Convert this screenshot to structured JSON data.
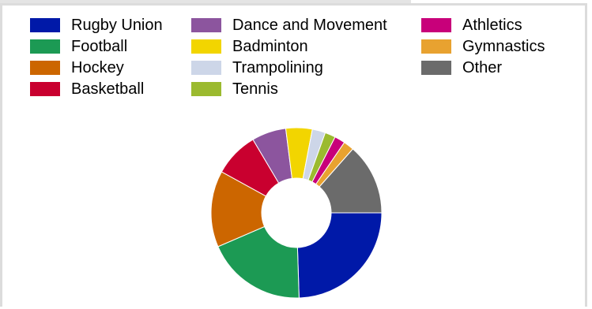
{
  "chart_data": {
    "type": "pie",
    "style": "donut",
    "title": "",
    "legend_position": "top",
    "slices": [
      {
        "label": "Rugby Union",
        "value": 24.5,
        "color": "#0019a8"
      },
      {
        "label": "Football",
        "value": 19.0,
        "color": "#1c9a54"
      },
      {
        "label": "Hockey",
        "value": 14.5,
        "color": "#cc6600"
      },
      {
        "label": "Basketball",
        "value": 8.5,
        "color": "#c9002f"
      },
      {
        "label": "Dance and Movement",
        "value": 6.5,
        "color": "#8c559e"
      },
      {
        "label": "Badminton",
        "value": 5.0,
        "color": "#f2d500"
      },
      {
        "label": "Trampolining",
        "value": 2.5,
        "color": "#cdd6e8"
      },
      {
        "label": "Tennis",
        "value": 2.0,
        "color": "#9bba2f"
      },
      {
        "label": "Athletics",
        "value": 2.0,
        "color": "#c8007a"
      },
      {
        "label": "Gymnastics",
        "value": 2.0,
        "color": "#e8a230"
      },
      {
        "label": "Other",
        "value": 13.5,
        "color": "#6b6b6b"
      }
    ],
    "legend_columns": [
      [
        "Rugby Union",
        "Football",
        "Hockey",
        "Basketball"
      ],
      [
        "Dance and Movement",
        "Badminton",
        "Trampolining",
        "Tennis"
      ],
      [
        "Athletics",
        "Gymnastics",
        "Other"
      ]
    ]
  }
}
